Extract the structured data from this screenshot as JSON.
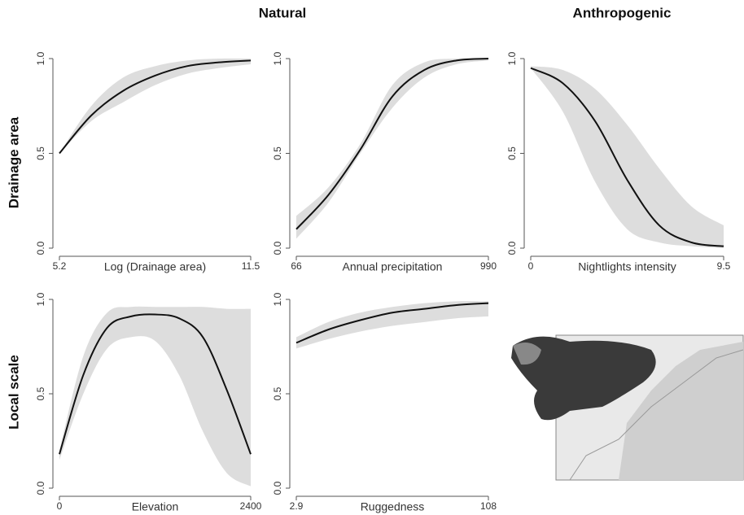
{
  "column_titles": [
    "Natural",
    "Anthropogenic"
  ],
  "row_titles": [
    "Drainage area",
    "Local scale"
  ],
  "chart_data": [
    {
      "type": "line",
      "xlabel": "Log (Drainage area)",
      "xlim": [
        5.2,
        11.5
      ],
      "xticks": [
        5.2,
        11.5
      ],
      "ylim": [
        0,
        1
      ],
      "yticks": [
        {
          "value": 0,
          "label": "0.0"
        },
        {
          "value": 0.5,
          "label": "0.5"
        },
        {
          "value": 1,
          "label": "1.0"
        }
      ],
      "color": "#111111",
      "band_color": "#dddddd",
      "x": [
        5.2,
        6.25,
        7.3,
        8.35,
        9.4,
        10.45,
        11.5
      ],
      "values": [
        0.5,
        0.7,
        0.83,
        0.91,
        0.96,
        0.98,
        0.99
      ],
      "lower": [
        0.5,
        0.67,
        0.77,
        0.86,
        0.92,
        0.95,
        0.97
      ],
      "upper": [
        0.5,
        0.75,
        0.9,
        0.96,
        0.99,
        1.0,
        1.0
      ]
    },
    {
      "type": "line",
      "xlabel": "Annual precipitation",
      "xlim": [
        66,
        990
      ],
      "xticks": [
        66,
        990
      ],
      "ylim": [
        0,
        1
      ],
      "yticks": [
        {
          "value": 0,
          "label": "0.0"
        },
        {
          "value": 0.5,
          "label": "0.5"
        },
        {
          "value": 1,
          "label": "1.0"
        }
      ],
      "color": "#111111",
      "band_color": "#dddddd",
      "x": [
        66,
        220,
        374,
        528,
        682,
        836,
        990
      ],
      "values": [
        0.1,
        0.28,
        0.52,
        0.8,
        0.94,
        0.99,
        1.0
      ],
      "lower": [
        0.05,
        0.24,
        0.5,
        0.74,
        0.9,
        0.97,
        0.99
      ],
      "upper": [
        0.17,
        0.32,
        0.55,
        0.86,
        0.98,
        1.0,
        1.0
      ]
    },
    {
      "type": "line",
      "xlabel": "Nightlights intensity",
      "xlim": [
        0,
        9.5
      ],
      "xticks": [
        0,
        9.5
      ],
      "ylim": [
        0,
        1
      ],
      "yticks": [
        {
          "value": 0,
          "label": "0.0"
        },
        {
          "value": 0.5,
          "label": "0.5"
        },
        {
          "value": 1,
          "label": "1.0"
        }
      ],
      "color": "#111111",
      "band_color": "#dddddd",
      "x": [
        0,
        1.58,
        3.17,
        4.75,
        6.33,
        7.92,
        9.5
      ],
      "values": [
        0.95,
        0.87,
        0.67,
        0.36,
        0.12,
        0.03,
        0.01
      ],
      "lower": [
        0.95,
        0.72,
        0.35,
        0.1,
        0.03,
        0.01,
        0
      ],
      "upper": [
        0.96,
        0.94,
        0.84,
        0.65,
        0.42,
        0.22,
        0.12
      ]
    },
    {
      "type": "line",
      "xlabel": "Elevation",
      "xlim": [
        0,
        2400
      ],
      "xticks": [
        0,
        2400
      ],
      "ylim": [
        0,
        1
      ],
      "yticks": [
        {
          "value": 0,
          "label": "0.0"
        },
        {
          "value": 0.5,
          "label": "0.5"
        },
        {
          "value": 1,
          "label": "1.0"
        }
      ],
      "color": "#111111",
      "band_color": "#dddddd",
      "x": [
        0,
        300,
        600,
        900,
        1200,
        1500,
        1800,
        2100,
        2400
      ],
      "values": [
        0.18,
        0.6,
        0.85,
        0.91,
        0.92,
        0.9,
        0.8,
        0.52,
        0.18
      ],
      "lower": [
        0.15,
        0.5,
        0.74,
        0.8,
        0.78,
        0.6,
        0.3,
        0.08,
        0.01
      ],
      "upper": [
        0.2,
        0.7,
        0.93,
        0.96,
        0.96,
        0.96,
        0.96,
        0.95,
        0.95
      ]
    },
    {
      "type": "line",
      "xlabel": "Ruggedness",
      "xlim": [
        2.9,
        108
      ],
      "xticks": [
        2.9,
        108
      ],
      "ylim": [
        0,
        1
      ],
      "yticks": [
        {
          "value": 0,
          "label": "0.0"
        },
        {
          "value": 0.5,
          "label": "0.5"
        },
        {
          "value": 1,
          "label": "1.0"
        }
      ],
      "color": "#111111",
      "band_color": "#dddddd",
      "x": [
        2.9,
        20.4,
        37.9,
        55.5,
        73,
        90.5,
        108
      ],
      "values": [
        0.77,
        0.84,
        0.89,
        0.93,
        0.95,
        0.97,
        0.98
      ],
      "lower": [
        0.74,
        0.79,
        0.83,
        0.86,
        0.88,
        0.9,
        0.91
      ],
      "upper": [
        0.8,
        0.88,
        0.93,
        0.96,
        0.98,
        0.99,
        0.99
      ]
    }
  ]
}
